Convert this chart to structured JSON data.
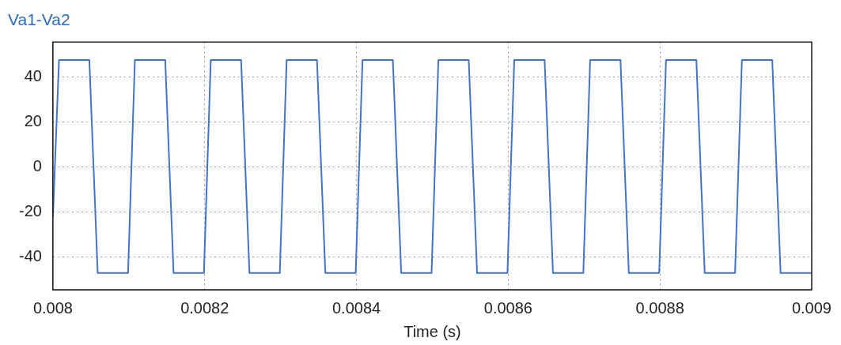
{
  "chart_data": {
    "type": "line",
    "title": "Va1-Va2",
    "xlabel": "Time (s)",
    "xlim": [
      0.008,
      0.009
    ],
    "xticks": [
      0.008,
      0.0082,
      0.0084,
      0.0086,
      0.0088,
      0.009
    ],
    "ylim": [
      -54.4,
      55.5
    ],
    "yticks": [
      -40,
      -20,
      0,
      20,
      40
    ],
    "grid": true,
    "legend": false,
    "marker": "none",
    "line_style": "solid",
    "series": [
      {
        "color": "#3f74c8",
        "x": [
          0.008,
          0.008008,
          0.008048,
          0.008059,
          0.008099,
          0.008108,
          0.008148,
          0.008159,
          0.008199,
          0.008208,
          0.008248,
          0.008259,
          0.008299,
          0.008308,
          0.008348,
          0.008359,
          0.008399,
          0.008408,
          0.008448,
          0.008459,
          0.008499,
          0.008508,
          0.008548,
          0.008559,
          0.008599,
          0.008608,
          0.008648,
          0.008659,
          0.008699,
          0.008708,
          0.008748,
          0.008759,
          0.008799,
          0.008808,
          0.008848,
          0.008859,
          0.008899,
          0.008908,
          0.008948,
          0.008959,
          0.009
        ],
        "values": [
          -22,
          47.5,
          47.5,
          -47,
          -47,
          47.5,
          47.5,
          -47,
          -47,
          47.5,
          47.5,
          -47,
          -47,
          47.5,
          47.5,
          -47,
          -47,
          47.5,
          47.5,
          -47,
          -47,
          47.5,
          47.5,
          -47,
          -47,
          47.5,
          47.5,
          -47,
          -47,
          47.5,
          47.5,
          -47,
          -47,
          47.5,
          47.5,
          -47,
          -47,
          47.5,
          47.5,
          -47,
          -47
        ]
      }
    ]
  }
}
